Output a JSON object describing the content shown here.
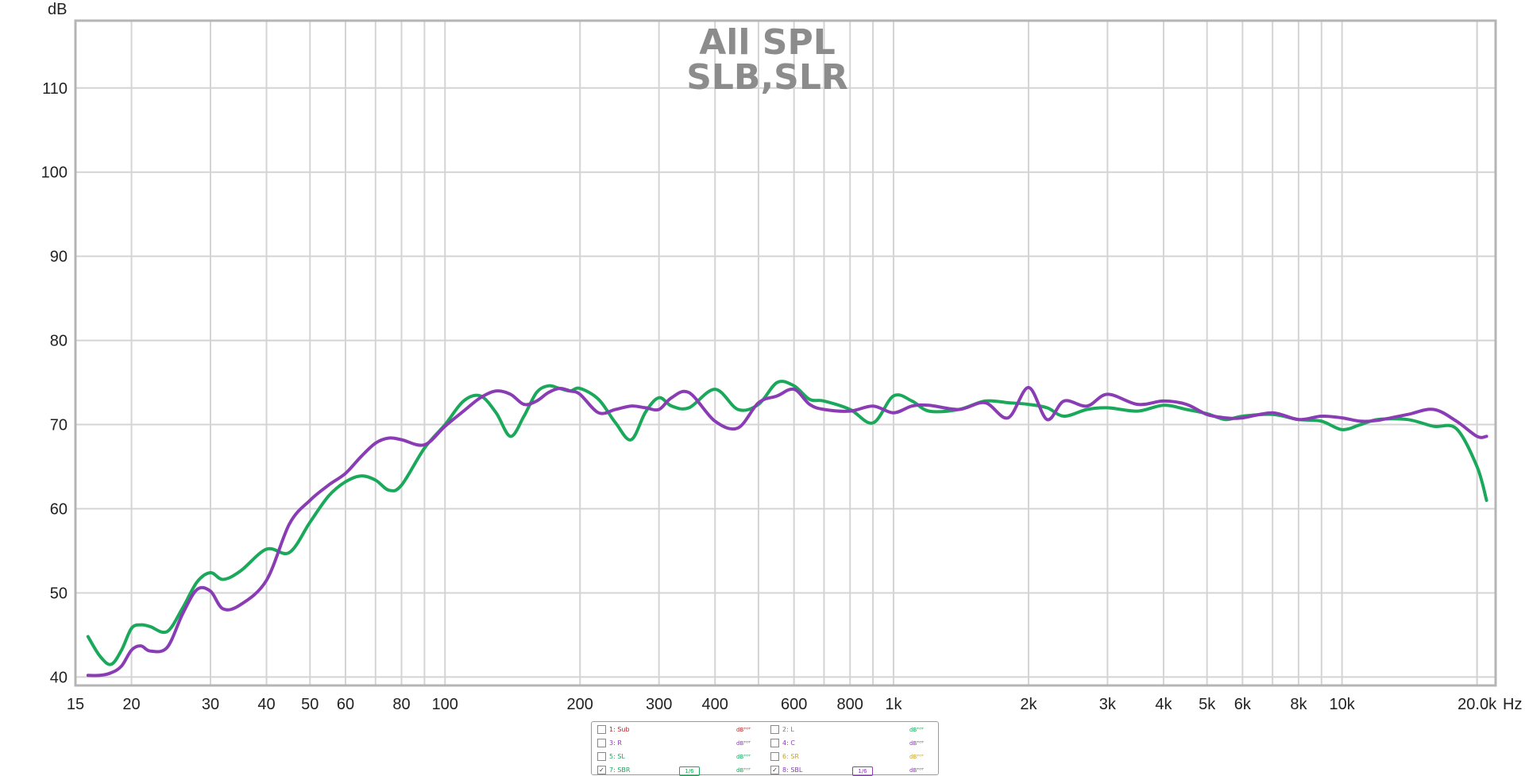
{
  "chart_data": {
    "type": "line",
    "title": [
      "All SPL",
      "SLB,SLR"
    ],
    "ylabel": "dB",
    "xlabel_unit": "Hz",
    "x_scale": "log",
    "xlim": [
      15,
      22000
    ],
    "ylim": [
      39,
      118
    ],
    "grid": true,
    "y_ticks": [
      {
        "value": 40,
        "label": "40"
      },
      {
        "value": 50,
        "label": "50"
      },
      {
        "value": 60,
        "label": "60"
      },
      {
        "value": 70,
        "label": "70"
      },
      {
        "value": 80,
        "label": "80"
      },
      {
        "value": 90,
        "label": "90"
      },
      {
        "value": 100,
        "label": "100"
      },
      {
        "value": 110,
        "label": "110"
      }
    ],
    "x_ticks": [
      {
        "value": 15,
        "label": "15"
      },
      {
        "value": 20,
        "label": "20"
      },
      {
        "value": 30,
        "label": "30"
      },
      {
        "value": 40,
        "label": "40"
      },
      {
        "value": 50,
        "label": "50"
      },
      {
        "value": 60,
        "label": "60"
      },
      {
        "value": 80,
        "label": "80"
      },
      {
        "value": 100,
        "label": "100"
      },
      {
        "value": 200,
        "label": "200"
      },
      {
        "value": 300,
        "label": "300"
      },
      {
        "value": 400,
        "label": "400"
      },
      {
        "value": 600,
        "label": "600"
      },
      {
        "value": 800,
        "label": "800"
      },
      {
        "value": 1000,
        "label": "1k"
      },
      {
        "value": 2000,
        "label": "2k"
      },
      {
        "value": 3000,
        "label": "3k"
      },
      {
        "value": 4000,
        "label": "4k"
      },
      {
        "value": 5000,
        "label": "5k"
      },
      {
        "value": 6000,
        "label": "6k"
      },
      {
        "value": 8000,
        "label": "8k"
      },
      {
        "value": 10000,
        "label": "10k"
      },
      {
        "value": 20000,
        "label": "20.0k"
      }
    ],
    "series": [
      {
        "name": "7: SBR",
        "color": "#1aa85a",
        "x": [
          16,
          17,
          18,
          19,
          20,
          21,
          22,
          24,
          26,
          28,
          30,
          32,
          35,
          40,
          45,
          50,
          55,
          60,
          65,
          70,
          75,
          80,
          90,
          100,
          110,
          120,
          130,
          140,
          150,
          160,
          170,
          180,
          190,
          200,
          220,
          240,
          260,
          280,
          300,
          320,
          350,
          400,
          450,
          500,
          550,
          600,
          650,
          700,
          800,
          900,
          1000,
          1100,
          1200,
          1400,
          1600,
          1800,
          2000,
          2200,
          2400,
          2700,
          3000,
          3500,
          4000,
          4500,
          5000,
          5500,
          6000,
          7000,
          8000,
          9000,
          10000,
          11000,
          12000,
          14000,
          16000,
          18000,
          20000,
          21000
        ],
        "y": [
          44.8,
          42.5,
          41.5,
          43.2,
          45.8,
          46.2,
          46.0,
          45.4,
          48.2,
          51.3,
          52.4,
          51.6,
          52.6,
          55.2,
          54.8,
          58.4,
          61.5,
          63.2,
          63.9,
          63.4,
          62.2,
          62.8,
          67.2,
          70.0,
          72.8,
          73.4,
          71.4,
          68.6,
          71.0,
          73.8,
          74.6,
          74.3,
          74.0,
          74.3,
          73.0,
          70.2,
          68.2,
          71.5,
          73.2,
          72.2,
          72.0,
          74.2,
          71.8,
          72.4,
          75.0,
          74.6,
          73.0,
          72.8,
          71.8,
          70.2,
          73.4,
          72.8,
          71.6,
          71.8,
          72.8,
          72.6,
          72.4,
          72.0,
          71.0,
          71.8,
          72.0,
          71.6,
          72.3,
          71.8,
          71.3,
          70.6,
          71.0,
          71.2,
          70.6,
          70.4,
          69.4,
          70.0,
          70.6,
          70.6,
          69.8,
          69.5,
          65.0,
          61.0
        ]
      },
      {
        "name": "8: SBL",
        "color": "#8a3cb4",
        "x": [
          16,
          17,
          18,
          19,
          20,
          21,
          22,
          24,
          26,
          28,
          30,
          32,
          35,
          40,
          45,
          50,
          55,
          60,
          65,
          70,
          75,
          80,
          90,
          100,
          110,
          120,
          130,
          140,
          150,
          160,
          170,
          180,
          190,
          200,
          220,
          240,
          260,
          280,
          300,
          320,
          350,
          400,
          450,
          500,
          550,
          600,
          650,
          700,
          800,
          900,
          1000,
          1100,
          1200,
          1400,
          1600,
          1800,
          2000,
          2200,
          2400,
          2700,
          3000,
          3500,
          4000,
          4500,
          5000,
          5500,
          6000,
          7000,
          8000,
          9000,
          10000,
          11000,
          12000,
          14000,
          16000,
          18000,
          20000,
          21000
        ],
        "y": [
          40.2,
          40.2,
          40.5,
          41.3,
          43.2,
          43.7,
          43.1,
          43.5,
          47.5,
          50.4,
          50.2,
          48.1,
          48.6,
          51.5,
          58.2,
          61.0,
          62.8,
          64.2,
          66.2,
          67.8,
          68.4,
          68.2,
          67.6,
          69.8,
          71.6,
          73.2,
          74.0,
          73.6,
          72.4,
          72.8,
          73.8,
          74.3,
          74.0,
          73.6,
          71.4,
          71.8,
          72.2,
          72.0,
          71.8,
          73.2,
          73.8,
          70.4,
          69.6,
          72.6,
          73.4,
          74.2,
          72.4,
          71.8,
          71.6,
          72.2,
          71.4,
          72.2,
          72.3,
          71.8,
          72.6,
          70.8,
          74.4,
          70.6,
          72.8,
          72.2,
          73.6,
          72.4,
          72.8,
          72.4,
          71.2,
          70.8,
          70.8,
          71.4,
          70.6,
          71.0,
          70.8,
          70.4,
          70.5,
          71.2,
          71.8,
          70.4,
          68.6,
          68.6
        ]
      }
    ]
  },
  "legend": {
    "items": [
      {
        "label": "1: Sub",
        "checked": false,
        "color": "#b02a2a",
        "db_color": "#b02a2a"
      },
      {
        "label": "2: L",
        "checked": false,
        "color": "#7a7a7a",
        "db_color": "#1aa85a"
      },
      {
        "label": "3: R",
        "checked": false,
        "color": "#8a3cb4",
        "db_color": "#8a3cb4"
      },
      {
        "label": "4: C",
        "checked": false,
        "color": "#8a3cb4",
        "db_color": "#8a3cb4"
      },
      {
        "label": "5: SL",
        "checked": false,
        "color": "#1aa85a",
        "db_color": "#1aa85a"
      },
      {
        "label": "6: SR",
        "checked": false,
        "color": "#c9a02a",
        "db_color": "#c9a02a"
      },
      {
        "label": "7: SBR",
        "checked": true,
        "color": "#1aa85a",
        "db_color": "#1aa85a",
        "smoothing": "1/6"
      },
      {
        "label": "8: SBL",
        "checked": true,
        "color": "#8a3cb4",
        "db_color": "#8a3cb4",
        "smoothing": "1/6"
      }
    ],
    "db_label": "dB",
    "db_suffix": "ᵀᴼᵀ",
    "check_mark": "✓"
  }
}
